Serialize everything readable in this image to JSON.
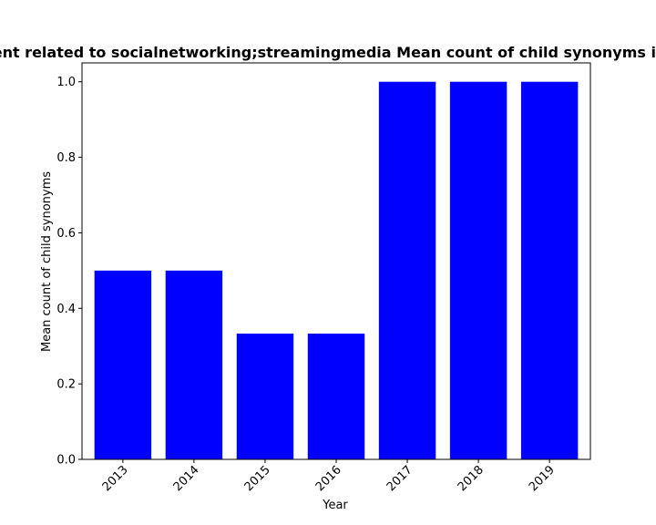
{
  "chart_data": {
    "type": "bar",
    "title": "Content related to socialnetworking;streamingmedia Mean count of child synonyms in posts",
    "xlabel": "Year",
    "ylabel": "Mean count of child synonyms",
    "categories": [
      "2013",
      "2014",
      "2015",
      "2016",
      "2017",
      "2018",
      "2019"
    ],
    "values": [
      0.5,
      0.5,
      0.333,
      0.333,
      1.0,
      1.0,
      1.0
    ],
    "ylim": [
      0,
      1.05
    ],
    "yticks": [
      "0.0",
      "0.2",
      "0.4",
      "0.6",
      "0.8",
      "1.0"
    ],
    "bar_color": "#0000ff",
    "grid": false,
    "legend": "none"
  }
}
